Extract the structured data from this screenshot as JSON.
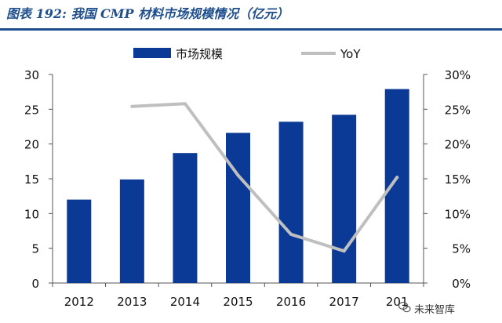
{
  "figure_title": "图表 192:  我国 CMP 材料市场规模情况（亿元）",
  "watermark": "未来智库",
  "colors": {
    "bar": "#0b3a96",
    "line": "#bfbfbf",
    "title": "#1f4e8c"
  },
  "chart_data": {
    "type": "bar",
    "title": "",
    "categories": [
      "2012",
      "2013",
      "2014",
      "2015",
      "2016",
      "2017",
      "2018"
    ],
    "category_tick_labels": [
      "2012",
      "2013",
      "2014",
      "2015",
      "2016",
      "2017",
      "201"
    ],
    "series": [
      {
        "name": "市场规模",
        "type": "bar",
        "axis": "left",
        "values": [
          12.0,
          14.9,
          18.7,
          21.6,
          23.2,
          24.2,
          27.9
        ]
      },
      {
        "name": "YoY",
        "type": "line",
        "axis": "right",
        "unit": "%",
        "values": [
          null,
          25.4,
          25.8,
          15.5,
          7.0,
          4.6,
          15.2
        ]
      }
    ],
    "y_left": {
      "ylim": [
        0,
        30
      ],
      "ticks": [
        "0",
        "5",
        "10",
        "15",
        "20",
        "25",
        "30"
      ],
      "tick_values": [
        0,
        5,
        10,
        15,
        20,
        25,
        30
      ]
    },
    "y_right": {
      "ylim": [
        0,
        30
      ],
      "ticks": [
        "0%",
        "5%",
        "10%",
        "15%",
        "20%",
        "25%",
        "30%"
      ],
      "tick_values": [
        0,
        5,
        10,
        15,
        20,
        25,
        30
      ]
    },
    "grid": false,
    "legend_position": "top"
  }
}
